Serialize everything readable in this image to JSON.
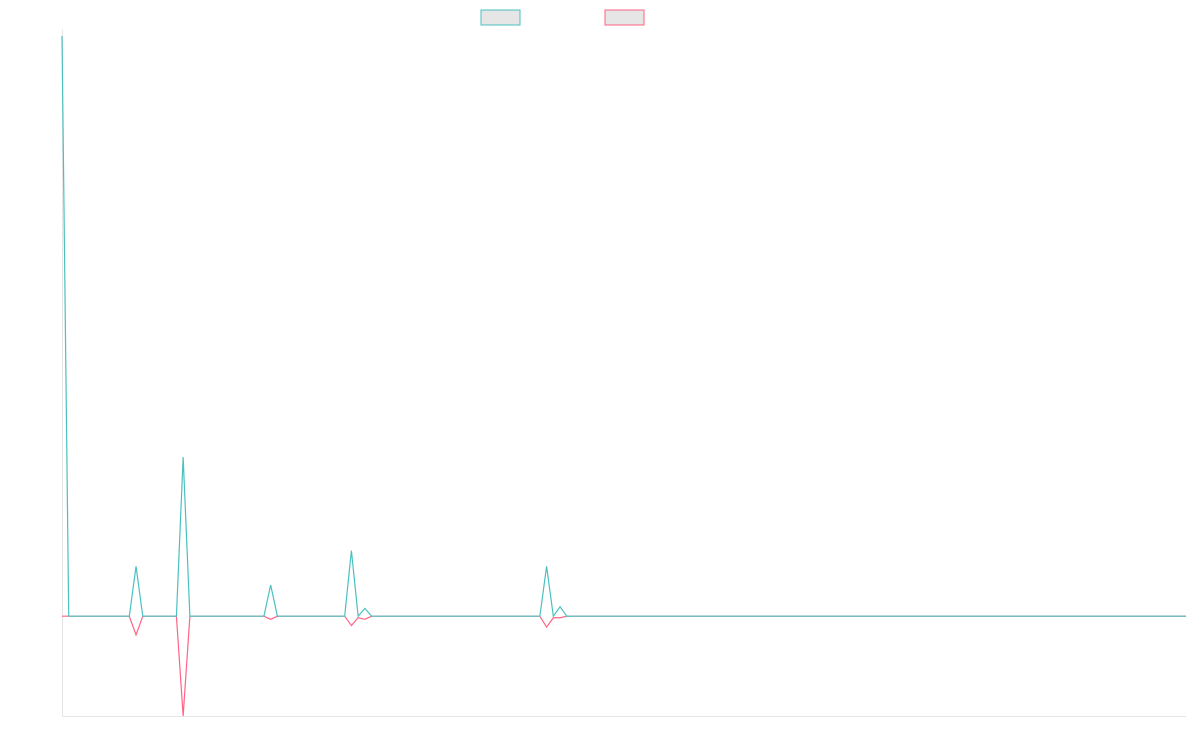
{
  "colors": {
    "series_a": "#4bc0c0",
    "series_b": "#ff6384",
    "legend_fill": "#e6e6e6",
    "axis": "#e5e5e5",
    "background": "#ffffff"
  },
  "chart_data": {
    "type": "line",
    "title": "",
    "xlabel": "",
    "ylabel": "",
    "grid": false,
    "legend": "top-center",
    "ylim": [
      -3.2,
      18.6
    ],
    "x": [
      0,
      1,
      2,
      3,
      4,
      5,
      6,
      7,
      8,
      9,
      10,
      11,
      12,
      13,
      14,
      15,
      16,
      17,
      18,
      19,
      20,
      21,
      22,
      23,
      24,
      25,
      26,
      27,
      28,
      29,
      30,
      31,
      32,
      33,
      34,
      35,
      36,
      37,
      38,
      39,
      40,
      41,
      42,
      43,
      44,
      45,
      46,
      47,
      48,
      49,
      50,
      51,
      52,
      53,
      54,
      55,
      56,
      57,
      58,
      59,
      60,
      61,
      62,
      63,
      64,
      65,
      66,
      67,
      68,
      69,
      70,
      71,
      72,
      73,
      74,
      75,
      76,
      77,
      78,
      79,
      80,
      81,
      82,
      83,
      84,
      85,
      86,
      87,
      88,
      89,
      90,
      91,
      92,
      93,
      94,
      95,
      96,
      97,
      98,
      99,
      100,
      101,
      102,
      103,
      104,
      105,
      106,
      107,
      108,
      109,
      110,
      111,
      112,
      113,
      114,
      115,
      116,
      117,
      118,
      119,
      120,
      121,
      122,
      123,
      124,
      125,
      126,
      127,
      128,
      129,
      130,
      131,
      132,
      133,
      134,
      135,
      136,
      137,
      138,
      139,
      140,
      141,
      142,
      143,
      144,
      145,
      146,
      147,
      148,
      149,
      150,
      151,
      152,
      153,
      154,
      155,
      156,
      157,
      158,
      159,
      160,
      161,
      162,
      163,
      164,
      165,
      166,
      167
    ],
    "series": [
      {
        "spikes": [
          [
            0,
            18.6
          ],
          [
            11,
            1.6
          ],
          [
            18,
            5.1
          ],
          [
            31,
            1.0
          ],
          [
            43,
            2.1
          ],
          [
            45,
            0.25
          ],
          [
            72,
            1.6
          ],
          [
            74,
            0.3
          ]
        ]
      },
      {
        "spikes": [
          [
            0,
            0.0
          ],
          [
            11,
            -0.6
          ],
          [
            18,
            -3.2
          ],
          [
            31,
            -0.1
          ],
          [
            43,
            -0.3
          ],
          [
            44,
            -0.05
          ],
          [
            45,
            -0.1
          ],
          [
            72,
            -0.35
          ],
          [
            73,
            -0.05
          ],
          [
            74,
            -0.05
          ]
        ]
      }
    ]
  }
}
